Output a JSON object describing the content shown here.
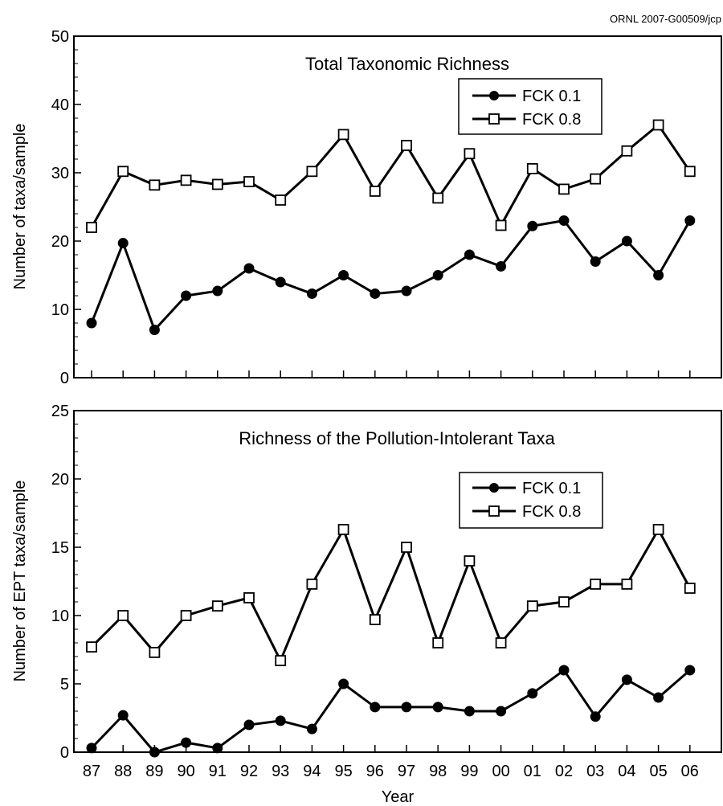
{
  "credit": "ORNL 2007-G00509/jcp",
  "chart_data": [
    {
      "type": "line",
      "title": "Total Taxonomic Richness",
      "xlabel": "",
      "ylabel": "Number of taxa/sample",
      "ylim": [
        0,
        50
      ],
      "yticks": [
        "0",
        "10",
        "20",
        "30",
        "40",
        "50"
      ],
      "categories": [
        "87",
        "88",
        "89",
        "90",
        "91",
        "92",
        "93",
        "94",
        "95",
        "96",
        "97",
        "98",
        "99",
        "00",
        "01",
        "02",
        "03",
        "04",
        "05",
        "06"
      ],
      "legend_position": "top-right",
      "grid": false,
      "series": [
        {
          "name": "FCK 0.1",
          "marker": "filled-circle",
          "color": "#000000",
          "values": [
            8,
            19.7,
            7,
            12,
            12.7,
            16,
            14,
            12.3,
            15,
            12.3,
            12.7,
            15,
            18,
            16.3,
            22.2,
            23,
            17,
            20,
            15,
            23
          ]
        },
        {
          "name": "FCK 0.8",
          "marker": "open-square",
          "color": "#000000",
          "values": [
            22,
            30.2,
            28.2,
            28.9,
            28.3,
            28.7,
            26,
            30.2,
            35.6,
            27.3,
            34,
            26.3,
            32.8,
            22.3,
            30.6,
            27.6,
            29.1,
            33.2,
            37,
            30.2
          ]
        }
      ]
    },
    {
      "type": "line",
      "title": "Richness of the Pollution-Intolerant Taxa",
      "xlabel": "Year",
      "ylabel": "Number of EPT taxa/sample",
      "ylim": [
        0,
        25
      ],
      "yticks": [
        "0",
        "5",
        "10",
        "15",
        "20",
        "25"
      ],
      "categories": [
        "87",
        "88",
        "89",
        "90",
        "91",
        "92",
        "93",
        "94",
        "95",
        "96",
        "97",
        "98",
        "99",
        "00",
        "01",
        "02",
        "03",
        "04",
        "05",
        "06"
      ],
      "legend_position": "top-right",
      "grid": false,
      "series": [
        {
          "name": "FCK 0.1",
          "marker": "filled-circle",
          "color": "#000000",
          "values": [
            0.3,
            2.7,
            0,
            0.7,
            0.3,
            2,
            2.3,
            1.7,
            5,
            3.3,
            3.3,
            3.3,
            3,
            3,
            4.3,
            6,
            2.6,
            5.3,
            4,
            6
          ]
        },
        {
          "name": "FCK 0.8",
          "marker": "open-square",
          "color": "#000000",
          "values": [
            7.7,
            10,
            7.3,
            10,
            10.7,
            11.3,
            6.7,
            12.3,
            16.3,
            9.7,
            15,
            8,
            14,
            8,
            10.7,
            11,
            12.3,
            12.3,
            16.3,
            12
          ]
        }
      ]
    }
  ]
}
